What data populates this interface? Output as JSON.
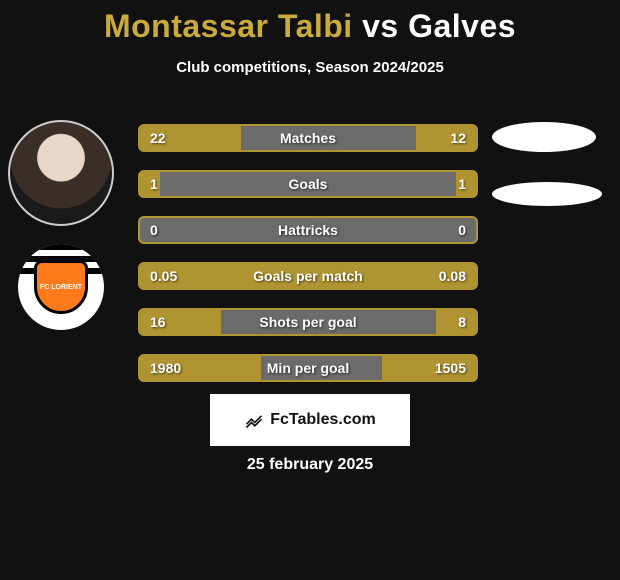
{
  "title": {
    "player1": "Montassar Talbi",
    "vs": "vs",
    "player2": "Galves"
  },
  "subtitle": "Club competitions, Season 2024/2025",
  "player1_color": "#c9aa3a",
  "player2_color": "#ffffff",
  "bar_fill_color": "#b09432",
  "bar_border_color": "#b09432",
  "bar_bg_color": "#6b6b6b",
  "stats": [
    {
      "label": "Matches",
      "v1": "22",
      "v2": "12",
      "w1": 30,
      "w2": 18
    },
    {
      "label": "Goals",
      "v1": "1",
      "v2": "1",
      "w1": 6,
      "w2": 6
    },
    {
      "label": "Hattricks",
      "v1": "0",
      "v2": "0",
      "w1": 0,
      "w2": 0
    },
    {
      "label": "Goals per match",
      "v1": "0.05",
      "v2": "0.08",
      "w1": 36,
      "w2": 64
    },
    {
      "label": "Shots per goal",
      "v1": "16",
      "v2": "8",
      "w1": 24,
      "w2": 12
    },
    {
      "label": "Min per goal",
      "v1": "1980",
      "v2": "1505",
      "w1": 36,
      "w2": 28
    }
  ],
  "club_label": "FC LORIENT",
  "attribution": "FcTables.com",
  "date": "25 february 2025"
}
